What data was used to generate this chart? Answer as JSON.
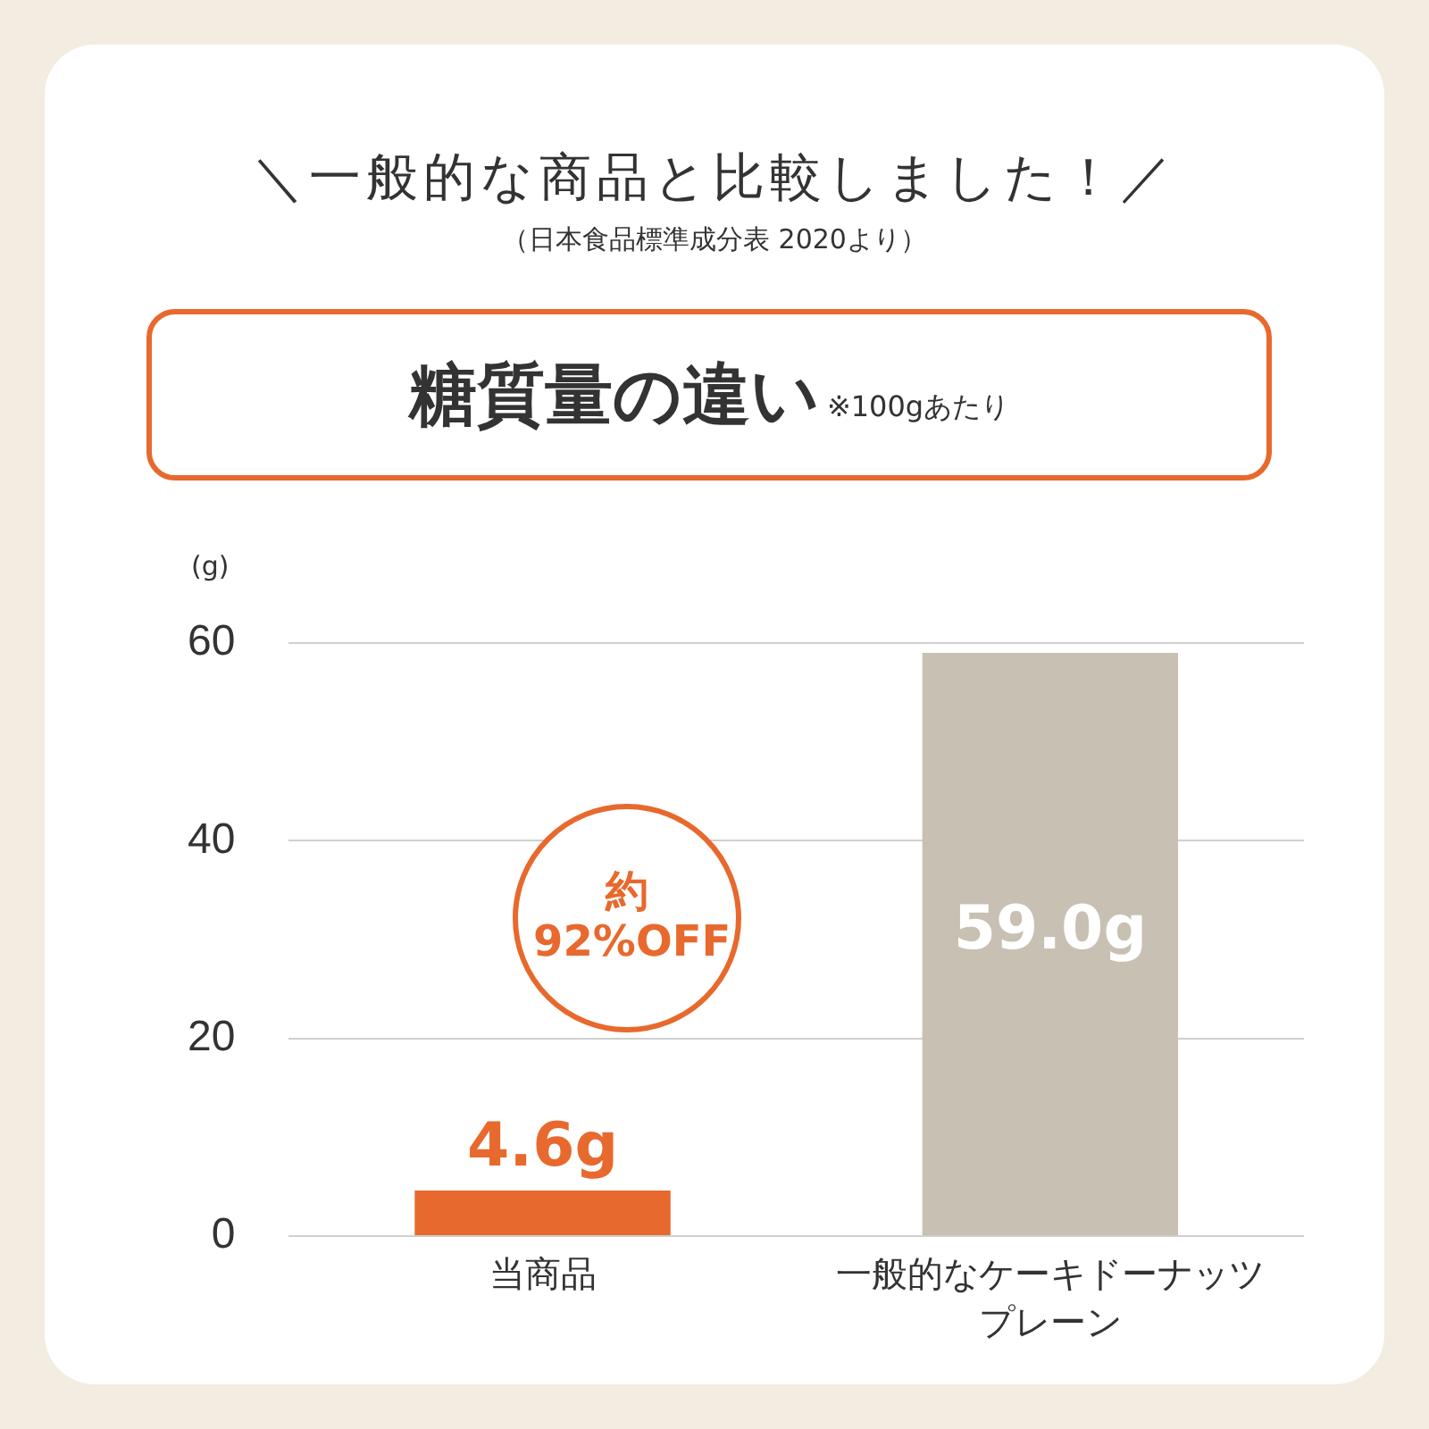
{
  "chart_data": {
    "type": "bar",
    "title": "＼一般的な商品と比較しました！／",
    "subtitle": "（日本食品標準成分表 2020より）",
    "ylabel": "(g)",
    "annotations": [
      "糖質量の違い",
      "※100gあたり",
      "約92%OFF"
    ],
    "categories": [
      "当商品",
      "一般的なケーキドーナッツプレーン"
    ],
    "values": [
      4.6,
      59.0
    ],
    "colors": [
      "#e8692d",
      "#c8c0b3"
    ],
    "value_labels": [
      "4.6g",
      "59.0g"
    ],
    "ylim": [
      0,
      60
    ],
    "yticks": [
      0,
      20,
      40,
      60
    ],
    "grid": "y",
    "legend": false
  }
}
